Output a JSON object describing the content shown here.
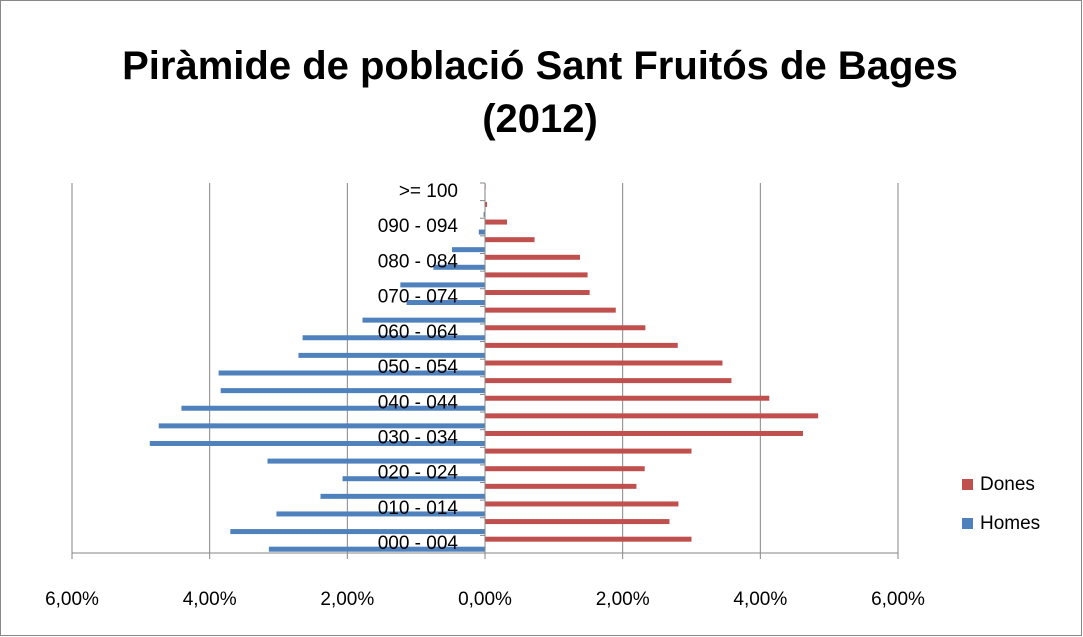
{
  "chart_data": {
    "type": "pyramid",
    "title": "Piràmide de població Sant Fruitós de Bages (2012)",
    "categories": [
      "000 - 004",
      null,
      "010 - 014",
      null,
      "020 - 024",
      null,
      "030 - 034",
      null,
      "040 - 044",
      null,
      "050 - 054",
      null,
      "060 - 064",
      null,
      "070 - 074",
      null,
      "080 - 084",
      null,
      "090 - 094",
      null,
      ">= 100"
    ],
    "series": [
      {
        "name": "Homes",
        "color": "#4f81bd",
        "values": [
          -3.14,
          -3.7,
          -3.03,
          -2.39,
          -2.07,
          -3.16,
          -4.87,
          -4.74,
          -4.41,
          -3.84,
          -3.87,
          -2.71,
          -2.65,
          -1.78,
          -1.14,
          -1.23,
          -0.75,
          -0.48,
          -0.09,
          -0.02,
          0
        ]
      },
      {
        "name": "Dones",
        "color": "#c0504d",
        "values": [
          3.0,
          2.68,
          2.81,
          2.2,
          2.32,
          3.0,
          4.62,
          4.84,
          4.13,
          3.58,
          3.45,
          2.8,
          2.33,
          1.9,
          1.52,
          1.49,
          1.38,
          0.72,
          0.32,
          0.03,
          0.01
        ]
      }
    ],
    "xlim": [
      -6,
      6
    ],
    "xticks": [
      {
        "value": -6,
        "label": "6,00%"
      },
      {
        "value": -4,
        "label": "4,00%"
      },
      {
        "value": -2,
        "label": "2,00%"
      },
      {
        "value": 0,
        "label": "0,00%"
      },
      {
        "value": 2,
        "label": "2,00%"
      },
      {
        "value": 4,
        "label": "4,00%"
      },
      {
        "value": 6,
        "label": "6,00%"
      }
    ],
    "grid": true,
    "legend": "right"
  }
}
